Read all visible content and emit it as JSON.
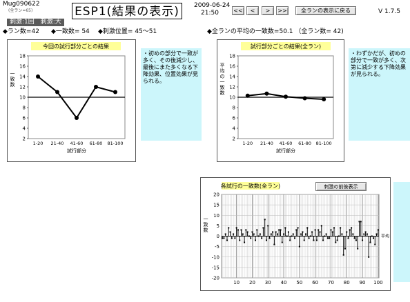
{
  "header": {
    "app_code": "Mug090622",
    "app_sub": "(全ラン=65)",
    "title": "ESP1(結果の表示)",
    "date": "2009-06-24",
    "time": "21:50",
    "nav_first": "<<",
    "nav_prev": "<",
    "nav_next": ">",
    "nav_last": ">>",
    "all_runs_button": "全ランの表示に戻る",
    "version": "V 1.7.5"
  },
  "conditions": "刺激:1回　刺激:大",
  "left_stats": {
    "runs": "◆ラン数=42",
    "matches": "◆一致数= 54",
    "stim_pos": "◆刺激位置= 45～51"
  },
  "right_stats": {
    "avg": "◆全ランの平均の一致数=50.1 （全ラン数= 42)"
  },
  "colors": {
    "note_bg": "#ccf6fb",
    "chart_title_bg": "#ffff99"
  },
  "chart_data": [
    {
      "type": "line",
      "title": "今回の試行部分ごとの結果",
      "xlabel": "試行部分",
      "ylabel": "一致数",
      "categories": [
        "1-20",
        "21-40",
        "41-60",
        "61-80",
        "81-100"
      ],
      "values": [
        14,
        11,
        6,
        12,
        11
      ],
      "ylim": [
        2,
        18
      ],
      "yticks": [
        2,
        4,
        6,
        8,
        10,
        12,
        14,
        16,
        18
      ],
      "reference_line": 10
    },
    {
      "type": "line",
      "title": "試行部分ごとの結果(全ラン)",
      "xlabel": "試行部分",
      "ylabel": "平均の一致数",
      "categories": [
        "1-20",
        "21-40",
        "41-60",
        "61-80",
        "81-100"
      ],
      "values": [
        10.3,
        10.7,
        10.1,
        9.8,
        9.6
      ],
      "ylim": [
        2,
        18
      ],
      "yticks": [
        2,
        4,
        6,
        8,
        10,
        12,
        14,
        16,
        18
      ],
      "reference_line": 10
    },
    {
      "type": "bar",
      "title": "各試行の一致数(全ラン)",
      "xlabel": "",
      "ylabel": "一致数",
      "reference_label": "平均",
      "button": "刺激の前後表示",
      "x": [
        1,
        2,
        3,
        4,
        5,
        6,
        7,
        8,
        9,
        10,
        11,
        12,
        13,
        14,
        15,
        16,
        17,
        18,
        19,
        20,
        21,
        22,
        23,
        24,
        25,
        26,
        27,
        28,
        29,
        30,
        31,
        32,
        33,
        34,
        35,
        36,
        37,
        38,
        39,
        40,
        41,
        42,
        43,
        44,
        45,
        46,
        47,
        48,
        49,
        50,
        51,
        52,
        53,
        54,
        55,
        56,
        57,
        58,
        59,
        60,
        61,
        62,
        63,
        64,
        65,
        66,
        67,
        68,
        69,
        70,
        71,
        72,
        73,
        74,
        75,
        76,
        77,
        78,
        79,
        80,
        81,
        82,
        83,
        84,
        85,
        86,
        87,
        88,
        89,
        90,
        91,
        92,
        93,
        94,
        95,
        96,
        97,
        98,
        99,
        100
      ],
      "values": [
        -1,
        -1,
        1,
        -2,
        4,
        2,
        -1,
        1,
        -1,
        4,
        3,
        -2,
        3,
        1,
        -3,
        3,
        2,
        0,
        -1,
        2,
        1,
        -2,
        3,
        0,
        1,
        -1,
        4,
        8,
        -2,
        5,
        -1,
        1,
        2,
        -4,
        2,
        1,
        3,
        3,
        -3,
        1,
        4,
        0,
        2,
        -2,
        0,
        1,
        -1,
        3,
        4,
        -5,
        1,
        2,
        -2,
        1,
        4,
        -1,
        0,
        2,
        -2,
        3,
        -2,
        3,
        2,
        5,
        -2,
        0,
        1,
        -1,
        -1,
        3,
        2,
        4,
        -3,
        -2,
        0,
        4,
        1,
        -9,
        -6,
        2,
        -1,
        3,
        4,
        1,
        -1,
        -2,
        -6,
        7,
        7,
        -2,
        1,
        2,
        1,
        -10,
        -3,
        0,
        -1,
        -4,
        1,
        3
      ],
      "ylim": [
        -20,
        20
      ],
      "yticks": [
        -20,
        -15,
        -10,
        -5,
        0,
        5,
        10,
        15,
        20
      ],
      "xticks": [
        10,
        20,
        30,
        40,
        50,
        60,
        70,
        80,
        90,
        100
      ]
    }
  ]
}
